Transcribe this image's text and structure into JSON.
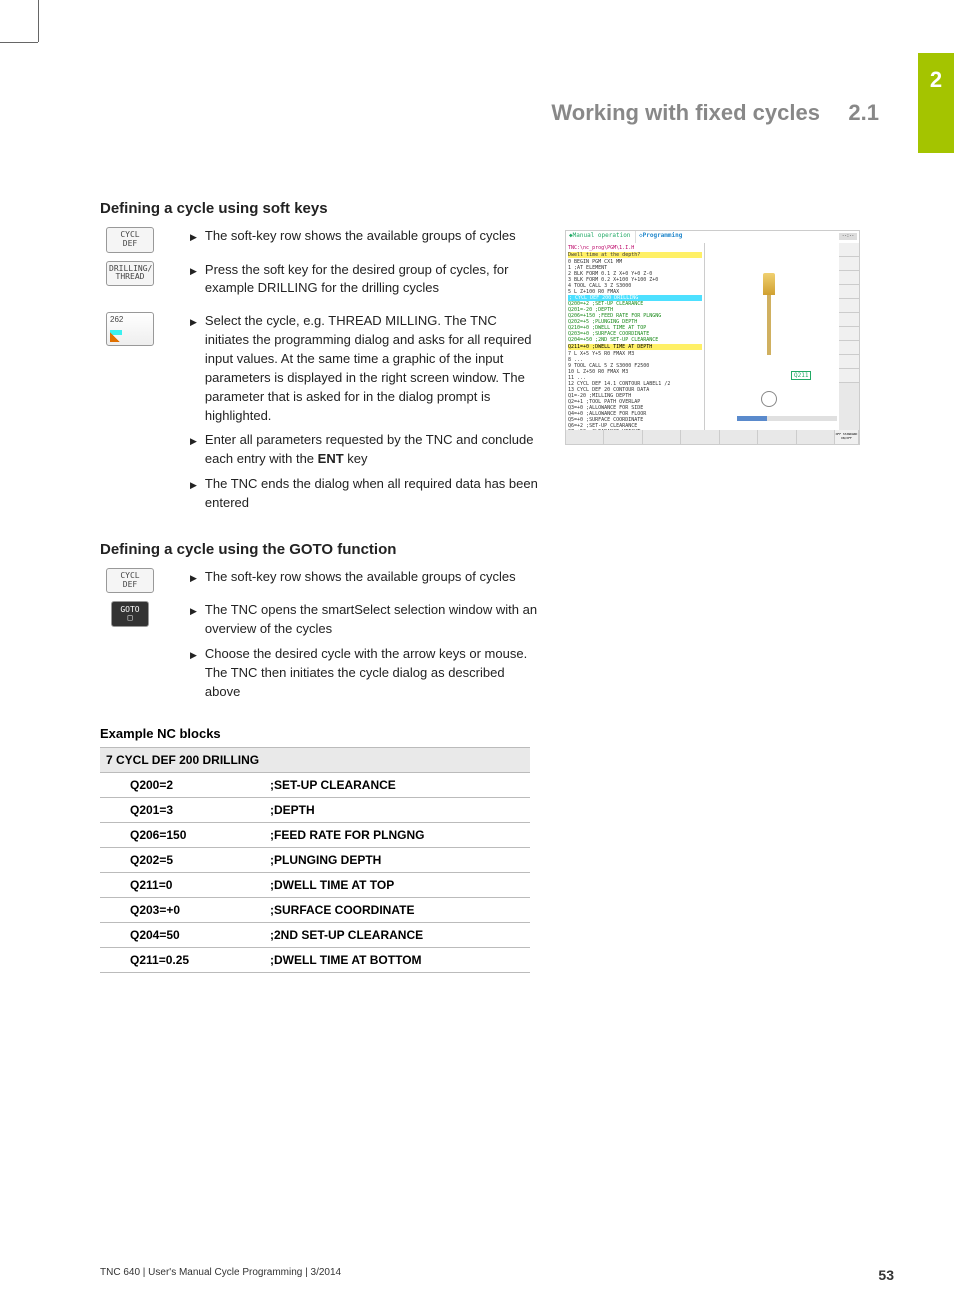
{
  "chapter_tab": "2",
  "header": {
    "title": "Working with fixed cycles",
    "section": "2.1"
  },
  "section1": {
    "heading": "Defining a cycle using soft keys",
    "softkeys": {
      "cycl_def": "CYCL\nDEF",
      "drilling_thread": "DRILLING/\nTHREAD",
      "num262": "262"
    },
    "bullets": [
      [
        "The soft-key row shows the available groups of cycles"
      ],
      [
        "Press the soft key for the desired group of cycles, for example DRILLING for the drilling cycles"
      ],
      [
        "Select the cycle, e.g. THREAD MILLING. The TNC initiates the programming dialog and asks for all required input values. At the same time a graphic of the input parameters is displayed in the right screen window. The parameter that is asked for in the dialog prompt is highlighted.",
        "Enter all parameters requested by the TNC and conclude each entry with the ENT key",
        "The TNC ends the dialog when all required data has been entered"
      ]
    ]
  },
  "section2": {
    "heading": "Defining a cycle using the GOTO function",
    "softkeys": {
      "cycl_def": "CYCL\nDEF",
      "goto": "GOTO\n□"
    },
    "bullets": [
      [
        "The soft-key row shows the available groups of cycles"
      ],
      [
        "The TNC opens the smartSelect selection window with an overview of the cycles",
        "Choose the desired cycle with the arrow keys or mouse. The TNC then initiates the cycle dialog as described above"
      ]
    ]
  },
  "example": {
    "heading": "Example NC blocks",
    "header_row": "7 CYCL DEF 200 DRILLING",
    "rows": [
      {
        "param": "Q200=2",
        "comment": ";SET-UP CLEARANCE"
      },
      {
        "param": "Q201=3",
        "comment": ";DEPTH"
      },
      {
        "param": "Q206=150",
        "comment": ";FEED RATE FOR PLNGNG"
      },
      {
        "param": "Q202=5",
        "comment": ";PLUNGING DEPTH"
      },
      {
        "param": "Q211=0",
        "comment": ";DWELL TIME AT TOP"
      },
      {
        "param": "Q203=+0",
        "comment": ";SURFACE COORDINATE"
      },
      {
        "param": "Q204=50",
        "comment": ";2ND SET-UP CLEARANCE"
      },
      {
        "param": "Q211=0.25",
        "comment": ";DWELL TIME AT BOTTOM"
      }
    ]
  },
  "screenshot": {
    "tab1": "Manual operation",
    "tab2": "Programming",
    "clock": "--:--",
    "q_label": "Q211",
    "bottom_last": "OFF STANDARD ON/OFF",
    "code_path": "TNC:\\nc_prog\\PGM\\1.I.H",
    "code_yellow1": "Dwell time at the depth?",
    "code_cyan": "; CYCL DEF 200 DRILLING",
    "code_lines": [
      "0  BEGIN PGM CX1 MM",
      "1   ;AT ELEMENT",
      "2  BLK FORM 0.1 Z X+0 Y+0 Z-0",
      "3  BLK FORM 0.2 X+100 Y+100 Z+0",
      "4  TOOL CALL 3 Z S3000",
      "5  L Z+100 R0 FMAX"
    ],
    "code_params": [
      "Q200=+2    ;SET-UP CLEARANCE",
      "Q201=-20   ;DEPTH",
      "Q206=+150  ;FEED RATE FOR PLNGNG",
      "Q202=+5    ;PLUNGING DEPTH",
      "Q210=+0    ;DWELL TIME AT TOP",
      "Q203=+0    ;SURFACE COORDINATE",
      "Q204=+50   ;2ND SET-UP CLEARANCE"
    ],
    "code_yellow2": "Q211=+0    ;DWELL TIME AT DEPTH",
    "code_after": [
      "7  L X+5 Y+5 R0 FMAX M3",
      "8  ...",
      "9  TOOL CALL 5 Z S3000 F2500",
      "10 L Z+50 R0 FMAX M3",
      "11 ...",
      "12 CYCL DEF 14.1 CONTOUR LABEL1 /2",
      "13 CYCL DEF 20 CONTOUR DATA",
      "   Q1=-20    ;MILLING DEPTH",
      "   Q2=+1     ;TOOL PATH OVERLAP",
      "   Q3=+0     ;ALLOWANCE FOR SIDE",
      "   Q4=+0     ;ALLOWANCE FOR FLOOR",
      "   Q5=+0     ;SURFACE COORDINATE",
      "   Q6=+2     ;SET-UP CLEARANCE",
      "   Q7=+50    ;CLEARANCE HEIGHT",
      "   Q8=+0     ;ROUNDING RADIUS",
      "   Q9=+1     ;ROTATIONAL DIRECTION",
      "14 CALL LBL 2",
      "15 CYCL DEF 21 ROUGH-OUT"
    ]
  },
  "footer": {
    "text": "TNC 640 | User's Manual Cycle Programming | 3/2014",
    "page": "53"
  }
}
